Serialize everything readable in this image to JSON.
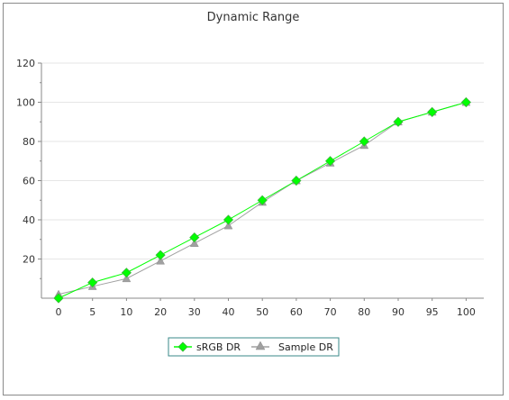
{
  "chart_data": {
    "type": "line",
    "title": "Dynamic Range",
    "xlabel": "",
    "ylabel": "",
    "categories": [
      "0",
      "5",
      "10",
      "20",
      "30",
      "40",
      "50",
      "60",
      "70",
      "80",
      "90",
      "95",
      "100"
    ],
    "ylim": [
      0,
      120
    ],
    "yticks": [
      20,
      40,
      60,
      80,
      100,
      120
    ],
    "grid": true,
    "legend_position": "bottom-center",
    "series": [
      {
        "name": "sRGB DR",
        "color": "#00ff00",
        "marker": "diamond",
        "values": [
          0,
          8,
          13,
          22,
          31,
          40,
          50,
          60,
          70,
          80,
          90,
          95,
          100
        ]
      },
      {
        "name": "Sample DR",
        "color": "#a0a0a0",
        "marker": "triangle",
        "values": [
          2,
          6,
          10,
          19,
          28,
          37,
          49,
          60,
          69,
          78,
          90,
          95,
          100
        ]
      }
    ]
  }
}
